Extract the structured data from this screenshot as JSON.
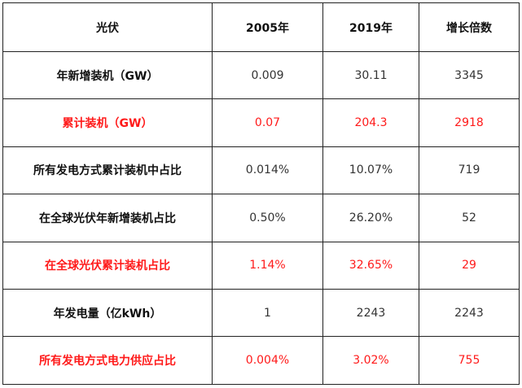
{
  "table": {
    "header": [
      "光伏",
      "2005年",
      "2019年",
      "增长倍数"
    ],
    "rows": [
      [
        "年新增装机（GW）",
        "0.009",
        "30.11",
        "3345"
      ],
      [
        "累计装机（GW）",
        "0.07",
        "204.3",
        "2918"
      ],
      [
        "所有发电方式累计装机中占比",
        "0.014%",
        "10.07%",
        "719"
      ],
      [
        "在全球光伏年新增装机占比",
        "0.50%",
        "26.20%",
        "52"
      ],
      [
        "在全球光伏累计装机占比",
        "1.14%",
        "32.65%",
        "29"
      ],
      [
        "年发电量（亿kWh）",
        "1",
        "2243",
        "2243"
      ],
      [
        "所有发电方式电力供应占比",
        "0.004%",
        "3.02%",
        "755"
      ]
    ]
  }
}
